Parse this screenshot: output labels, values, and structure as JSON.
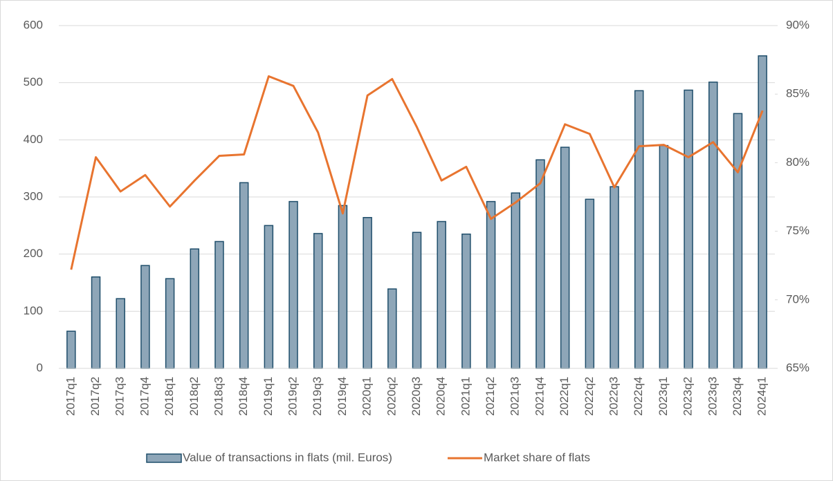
{
  "chart_data": {
    "type": "bar-line",
    "categories": [
      "2017q1",
      "2017q2",
      "2017q3",
      "2017q4",
      "2018q1",
      "2018q2",
      "2018q3",
      "2018q4",
      "2019q1",
      "2019q2",
      "2019q3",
      "2019q4",
      "2020q1",
      "2020q2",
      "2020q3",
      "2020q4",
      "2021q1",
      "2021q2",
      "2021q3",
      "2021q4",
      "2022q1",
      "2022q2",
      "2022q3",
      "2022q4",
      "2023q1",
      "2023q2",
      "2023q3",
      "2023q4",
      "2024q1"
    ],
    "series": [
      {
        "name": "Value of transactions in flats (mil. Euros)",
        "type": "bar",
        "color": "#8ea6b8",
        "edge_color": "#1f4e6b",
        "values": [
          65,
          160,
          122,
          180,
          157,
          209,
          222,
          325,
          250,
          292,
          236,
          285,
          264,
          139,
          238,
          257,
          235,
          292,
          307,
          365,
          387,
          296,
          318,
          486,
          390,
          487,
          501,
          446,
          547
        ]
      },
      {
        "name": "Market share of flats",
        "type": "line",
        "axis": "y2",
        "color": "#e8742f",
        "values": [
          72.2,
          80.4,
          77.9,
          79.1,
          76.8,
          78.7,
          80.5,
          80.6,
          86.3,
          85.6,
          82.2,
          76.3,
          84.9,
          86.1,
          82.6,
          78.7,
          79.7,
          75.9,
          77.1,
          78.5,
          82.8,
          82.1,
          78.2,
          81.2,
          81.3,
          80.4,
          81.5,
          79.3,
          83.8
        ]
      }
    ],
    "ylim": [
      0,
      600
    ],
    "yticks": [
      0,
      100,
      200,
      300,
      400,
      500,
      600
    ],
    "y2lim": [
      65,
      90
    ],
    "y2ticks": [
      {
        "value": 65,
        "label": "65%"
      },
      {
        "value": 70,
        "label": "70%"
      },
      {
        "value": 75,
        "label": "75%"
      },
      {
        "value": 80,
        "label": "80%"
      },
      {
        "value": 85,
        "label": "85%"
      },
      {
        "value": 90,
        "label": "90%"
      }
    ],
    "grid": true,
    "legend": "bottom"
  }
}
